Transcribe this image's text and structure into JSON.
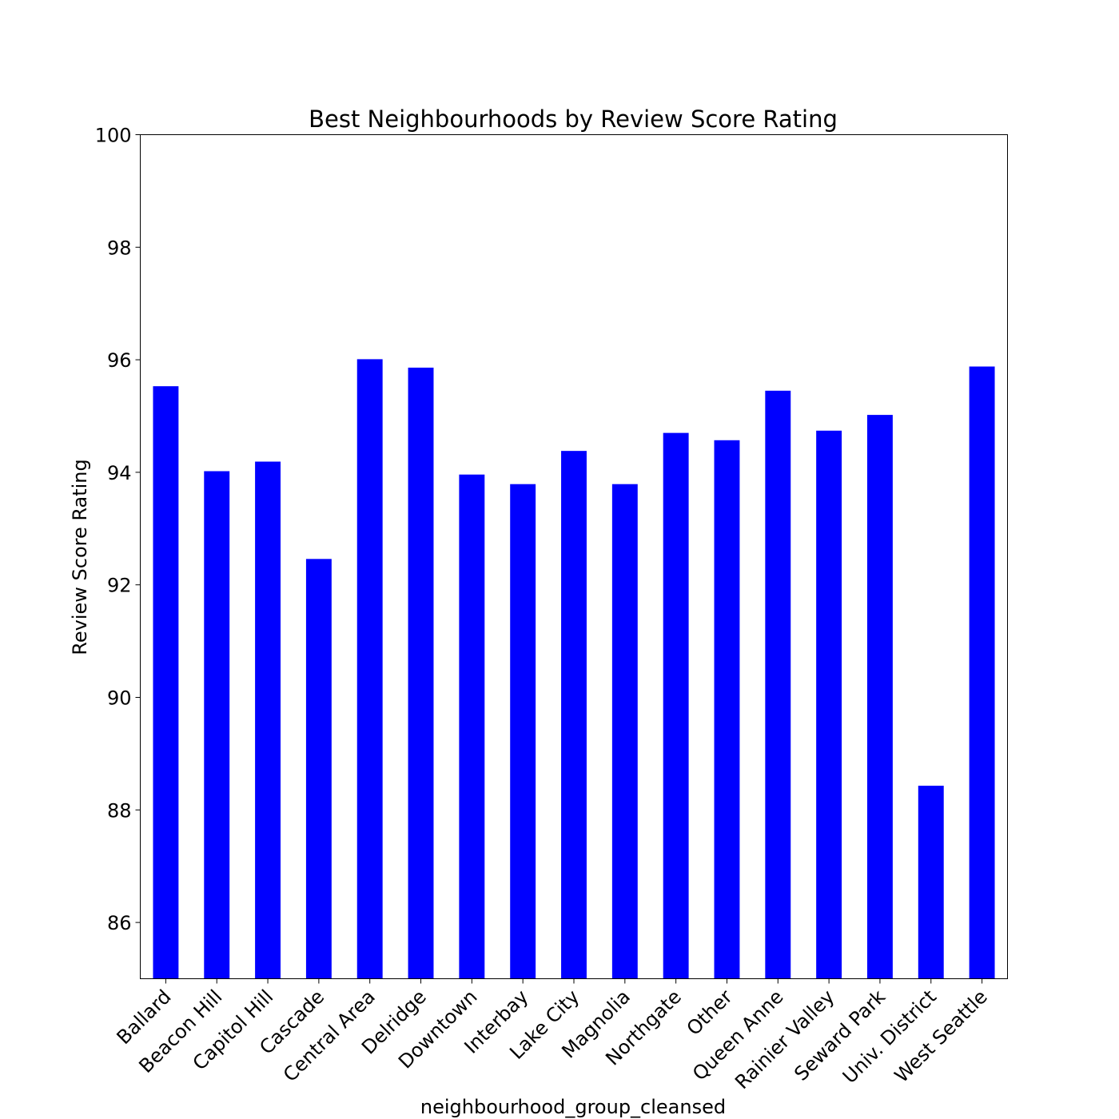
{
  "chart_data": {
    "type": "bar",
    "title": "Best Neighbourhoods by Review Score Rating",
    "xlabel": "neighbourhood_group_cleansed",
    "ylabel": "Review Score Rating",
    "ylim": [
      85,
      100
    ],
    "yticks": [
      86,
      88,
      90,
      92,
      94,
      96,
      98,
      100
    ],
    "grid": false,
    "bar_color": "#0000ff",
    "categories": [
      "Ballard",
      "Beacon Hill",
      "Capitol Hill",
      "Cascade",
      "Central Area",
      "Delridge",
      "Downtown",
      "Interbay",
      "Lake City",
      "Magnolia",
      "Northgate",
      "Other",
      "Queen Anne",
      "Rainier Valley",
      "Seward Park",
      "Univ. District",
      "West Seattle"
    ],
    "values": [
      95.53,
      94.02,
      94.19,
      92.46,
      96.01,
      95.86,
      93.96,
      93.79,
      94.38,
      93.79,
      94.7,
      94.57,
      95.45,
      94.74,
      95.02,
      88.43,
      95.88
    ]
  }
}
